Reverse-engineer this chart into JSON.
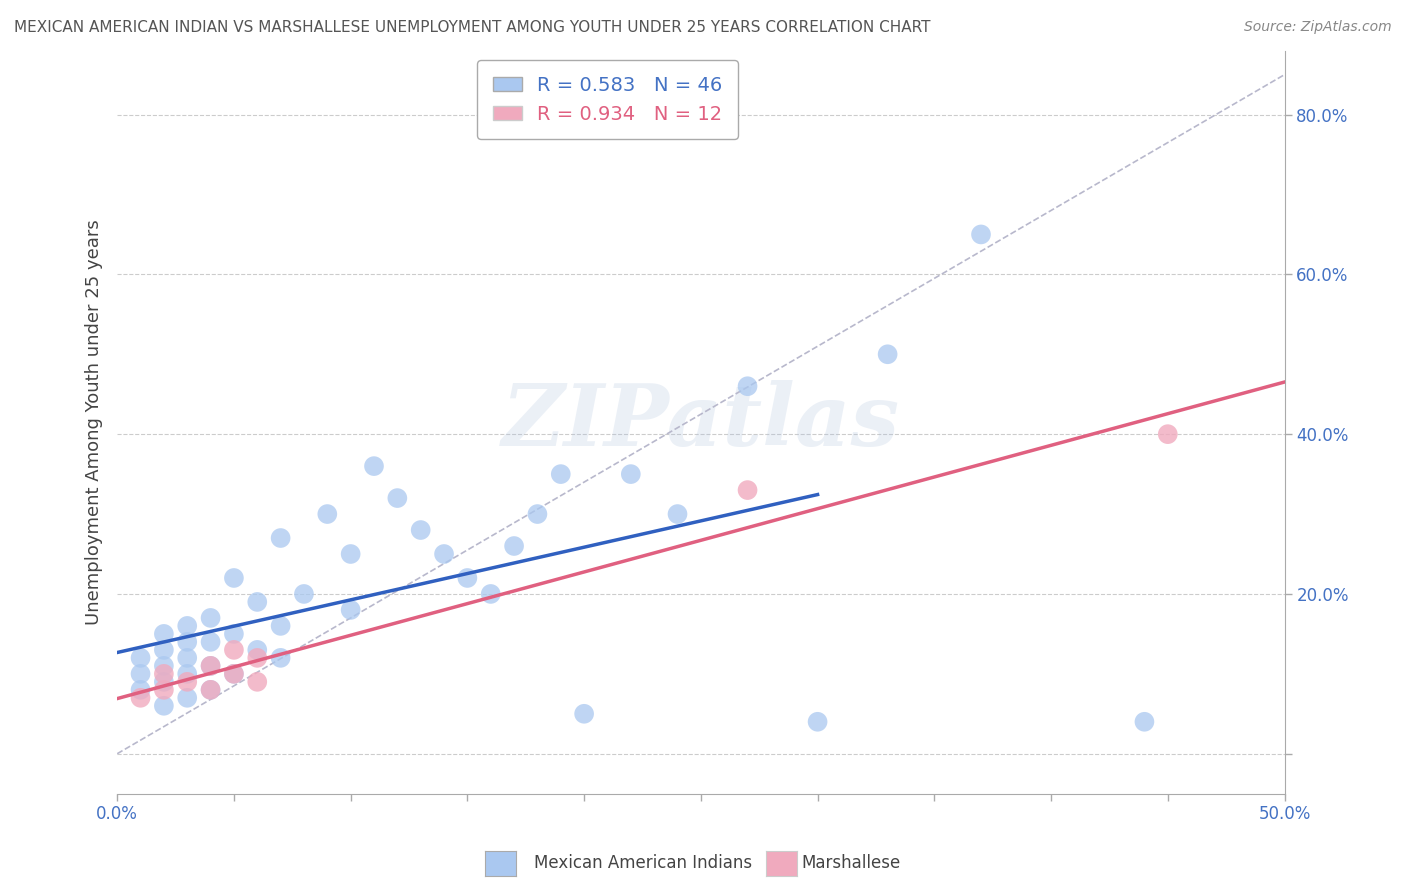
{
  "title": "MEXICAN AMERICAN INDIAN VS MARSHALLESE UNEMPLOYMENT AMONG YOUTH UNDER 25 YEARS CORRELATION CHART",
  "source": "Source: ZipAtlas.com",
  "ylabel": "Unemployment Among Youth under 25 years",
  "xlim": [
    0.0,
    0.5
  ],
  "ylim": [
    -0.05,
    0.88
  ],
  "yticks": [
    0.0,
    0.2,
    0.4,
    0.6,
    0.8
  ],
  "ytick_labels": [
    "",
    "20.0%",
    "40.0%",
    "60.0%",
    "80.0%"
  ],
  "xticks": [
    0.0,
    0.05,
    0.1,
    0.15,
    0.2,
    0.25,
    0.3,
    0.35,
    0.4,
    0.45,
    0.5
  ],
  "legend_blue_label": "R = 0.583   N = 46",
  "legend_pink_label": "R = 0.934   N = 12",
  "blue_color": "#aac8f0",
  "pink_color": "#f0aabe",
  "blue_line_color": "#3060c0",
  "pink_line_color": "#e06080",
  "ref_line_color": "#b8b8cc",
  "blue_scatter_x": [
    0.01,
    0.01,
    0.01,
    0.02,
    0.02,
    0.02,
    0.02,
    0.02,
    0.03,
    0.03,
    0.03,
    0.03,
    0.03,
    0.04,
    0.04,
    0.04,
    0.04,
    0.05,
    0.05,
    0.05,
    0.06,
    0.06,
    0.07,
    0.07,
    0.07,
    0.08,
    0.09,
    0.1,
    0.1,
    0.11,
    0.12,
    0.13,
    0.14,
    0.15,
    0.16,
    0.17,
    0.18,
    0.19,
    0.2,
    0.22,
    0.24,
    0.27,
    0.3,
    0.33,
    0.37,
    0.44
  ],
  "blue_scatter_y": [
    0.08,
    0.1,
    0.12,
    0.06,
    0.09,
    0.11,
    0.13,
    0.15,
    0.07,
    0.1,
    0.12,
    0.14,
    0.16,
    0.08,
    0.11,
    0.14,
    0.17,
    0.1,
    0.15,
    0.22,
    0.13,
    0.19,
    0.12,
    0.16,
    0.27,
    0.2,
    0.3,
    0.18,
    0.25,
    0.36,
    0.32,
    0.28,
    0.25,
    0.22,
    0.2,
    0.26,
    0.3,
    0.35,
    0.05,
    0.35,
    0.3,
    0.46,
    0.04,
    0.5,
    0.65,
    0.04
  ],
  "pink_scatter_x": [
    0.01,
    0.02,
    0.02,
    0.03,
    0.04,
    0.04,
    0.05,
    0.05,
    0.06,
    0.06,
    0.27,
    0.45
  ],
  "pink_scatter_y": [
    0.07,
    0.08,
    0.1,
    0.09,
    0.08,
    0.11,
    0.1,
    0.13,
    0.09,
    0.12,
    0.33,
    0.4
  ],
  "watermark_text": "ZIPatlas",
  "background_color": "#ffffff",
  "grid_color": "#cccccc"
}
